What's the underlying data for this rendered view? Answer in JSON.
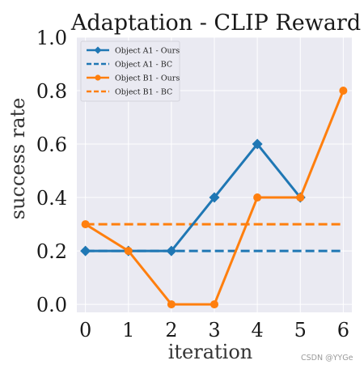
{
  "chart_data": {
    "type": "line",
    "title": "Adaptation - CLIP Reward",
    "xlabel": "iteration",
    "ylabel": "success rate",
    "x": [
      0,
      1,
      2,
      3,
      4,
      5,
      6
    ],
    "xlim": [
      -0.2,
      6.2
    ],
    "ylim": [
      -0.03,
      1.0
    ],
    "yticks": [
      0.0,
      0.2,
      0.4,
      0.6,
      0.8,
      1.0
    ],
    "grid": true,
    "legend_position": "top-left",
    "series": [
      {
        "name": "Object A1 - Ours",
        "values": [
          0.2,
          0.2,
          0.2,
          0.4,
          0.6,
          0.4,
          null
        ],
        "color": "#1f77b4",
        "style": "solid",
        "marker": "diamond"
      },
      {
        "name": "Object A1 - BC",
        "values": [
          0.2,
          0.2,
          0.2,
          0.2,
          0.2,
          0.2,
          0.2
        ],
        "color": "#1f77b4",
        "style": "dashed",
        "marker": "none"
      },
      {
        "name": "Object B1 - Ours",
        "values": [
          0.3,
          0.2,
          0.0,
          0.0,
          0.4,
          0.4,
          0.8
        ],
        "color": "#ff7f0e",
        "style": "solid",
        "marker": "circle"
      },
      {
        "name": "Object B1 - BC",
        "values": [
          0.3,
          0.3,
          0.3,
          0.3,
          0.3,
          0.3,
          0.3
        ],
        "color": "#ff7f0e",
        "style": "dashed",
        "marker": "none"
      }
    ]
  },
  "watermark": "CSDN @YYGe",
  "colors": {
    "plot_background": "#eaeaf2",
    "grid": "#ffffff"
  }
}
